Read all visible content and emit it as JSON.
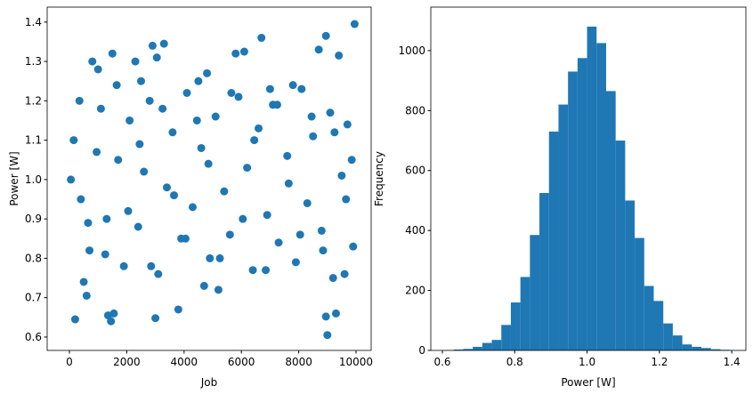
{
  "chart_data": [
    {
      "type": "scatter",
      "xlabel": "Job",
      "ylabel": "Power [W]",
      "color": "#1f77b4",
      "x": [
        200,
        9000,
        9950,
        8950,
        6700,
        3300,
        2900,
        1500,
        5800,
        6100,
        9400,
        3000,
        3800,
        1350,
        1450,
        1550,
        9300,
        8950,
        600,
        8700,
        2300,
        3050,
        4800,
        800,
        1000,
        4500,
        7800,
        5200,
        150,
        400,
        700,
        1100,
        1300,
        1700,
        1900,
        2100,
        2400,
        2600,
        2800,
        3100,
        3400,
        3600,
        3900,
        4100,
        4300,
        4600,
        4900,
        5100,
        5400,
        5600,
        5900,
        6200,
        6400,
        6600,
        6900,
        7100,
        7300,
        7600,
        7900,
        8100,
        8300,
        8500,
        8800,
        9100,
        9200,
        9500,
        9700,
        9900,
        50,
        350,
        650,
        950,
        1250,
        1650,
        2050,
        2450,
        2850,
        3250,
        3650,
        4050,
        4450,
        4850,
        5250,
        5650,
        6050,
        6450,
        6850,
        7250,
        7650,
        8050,
        8450,
        8850,
        9250,
        9650,
        9850,
        500,
        2500,
        4700,
        7000,
        9600
      ],
      "y": [
        0.645,
        0.605,
        1.395,
        1.365,
        1.36,
        1.345,
        1.34,
        1.32,
        1.32,
        1.325,
        1.315,
        0.648,
        0.67,
        0.655,
        0.64,
        0.66,
        0.66,
        0.652,
        0.705,
        1.33,
        1.3,
        1.31,
        1.27,
        1.3,
        1.28,
        1.25,
        1.24,
        0.72,
        1.1,
        0.95,
        0.82,
        1.18,
        0.9,
        1.05,
        0.78,
        1.15,
        0.88,
        1.02,
        1.2,
        0.76,
        0.98,
        1.12,
        0.85,
        1.22,
        0.93,
        1.08,
        0.8,
        1.16,
        0.97,
        0.86,
        1.21,
        1.03,
        0.77,
        1.13,
        0.91,
        1.19,
        0.84,
        1.06,
        0.79,
        1.23,
        0.94,
        1.11,
        0.87,
        1.17,
        0.75,
        1.01,
        1.14,
        0.83,
        1.0,
        1.2,
        0.89,
        1.07,
        0.81,
        1.24,
        0.92,
        1.09,
        0.78,
        1.18,
        0.96,
        0.85,
        1.15,
        1.04,
        0.8,
        1.22,
        0.9,
        1.1,
        0.77,
        1.19,
        0.99,
        0.86,
        1.16,
        0.82,
        1.12,
        0.95,
        1.05,
        0.74,
        1.25,
        0.73,
        1.23,
        0.76
      ],
      "xlim": [
        -776,
        10528
      ],
      "ylim": [
        0.566,
        1.438
      ],
      "xticks": [
        0,
        2000,
        4000,
        6000,
        8000,
        10000
      ],
      "yticks": [
        0.6,
        0.7,
        0.8,
        0.9,
        {
          "value": 1,
          "label": "1.0"
        },
        1.1,
        1.2,
        1.3,
        1.4
      ]
    },
    {
      "type": "histogram",
      "xlabel": "Power [W]",
      "ylabel": "Frequency",
      "color": "#1f77b4",
      "bins": [
        0.605,
        0.6313,
        0.6577,
        0.684,
        0.7103,
        0.7367,
        0.763,
        0.7893,
        0.8157,
        0.842,
        0.8683,
        0.8947,
        0.921,
        0.9473,
        0.9737,
        1.0,
        1.0263,
        1.0527,
        1.079,
        1.1053,
        1.1317,
        1.158,
        1.1843,
        1.2107,
        1.237,
        1.2633,
        1.2897,
        1.316,
        1.3423,
        1.3687,
        1.395
      ],
      "values": [
        1,
        3,
        5,
        12,
        25,
        35,
        85,
        160,
        245,
        385,
        525,
        730,
        820,
        930,
        975,
        1080,
        1025,
        865,
        700,
        500,
        375,
        215,
        165,
        90,
        50,
        20,
        12,
        8,
        4,
        2
      ],
      "xlim": [
        0.568,
        1.439
      ],
      "ylim": [
        0,
        1145
      ],
      "xticks": [
        0.6,
        0.8,
        {
          "value": 1,
          "label": "1.0"
        },
        1.2,
        1.4
      ],
      "yticks": [
        0,
        200,
        400,
        600,
        800,
        1000
      ]
    }
  ]
}
